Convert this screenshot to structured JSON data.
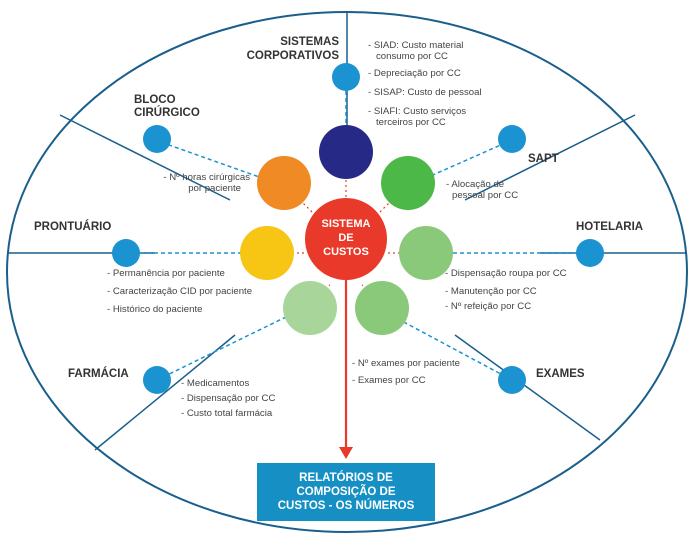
{
  "center": {
    "lines": [
      "SISTEMA",
      "DE",
      "CUSTOS"
    ]
  },
  "report": {
    "lines": [
      "RELATÓRIOS DE",
      "COMPOSIÇÃO DE",
      "CUSTOS - OS NÚMEROS"
    ]
  },
  "sources": {
    "corporativos": {
      "title_lines": [
        "SISTEMAS",
        "CORPORATIVOS"
      ],
      "items": [
        "- SIAD: Custo material",
        "consumo por CC",
        "- Depreciação por CC",
        "- SISAP: Custo de pessoal",
        "- SIAFI: Custo serviços",
        "terceiros por CC"
      ]
    },
    "bloco": {
      "title_lines": [
        "BLOCO",
        "CIRÚRGICO"
      ],
      "items": [
        "- Nº horas cirúrgicas",
        "por paciente"
      ]
    },
    "sapt": {
      "title_lines": [
        "SAPT"
      ],
      "items": [
        "- Alocação de",
        "pessoal por CC"
      ]
    },
    "prontuario": {
      "title_lines": [
        "PRONTUÁRIO"
      ],
      "items": [
        "- Permanência por paciente",
        "- Caracterização CID por paciente",
        "- Histórico do paciente"
      ]
    },
    "hotelaria": {
      "title_lines": [
        "HOTELARIA"
      ],
      "items": [
        "- Dispensação roupa por CC",
        "- Manutenção por CC",
        "- Nº refeição por CC"
      ]
    },
    "farmacia": {
      "title_lines": [
        "FARMÁCIA"
      ],
      "items": [
        "- Medicamentos",
        "- Dispensação por CC",
        "- Custo total farmácia"
      ]
    },
    "exames": {
      "title_lines": [
        "EXAMES"
      ],
      "items": [
        "- Nº exames por paciente",
        "- Exames por CC"
      ]
    }
  },
  "colors": {
    "ellipse": "#1a5f8c",
    "node": "#1b93d1",
    "center": "#e8392b",
    "report_box": "#1690c4",
    "satellite_navy": "#262a86",
    "satellite_green": "#4cb848",
    "satellite_orange": "#f08a24",
    "satellite_yellow": "#f7c514",
    "satellite_light_green": "#8ac97a",
    "satellite_pale_green": "#a8d69a"
  }
}
